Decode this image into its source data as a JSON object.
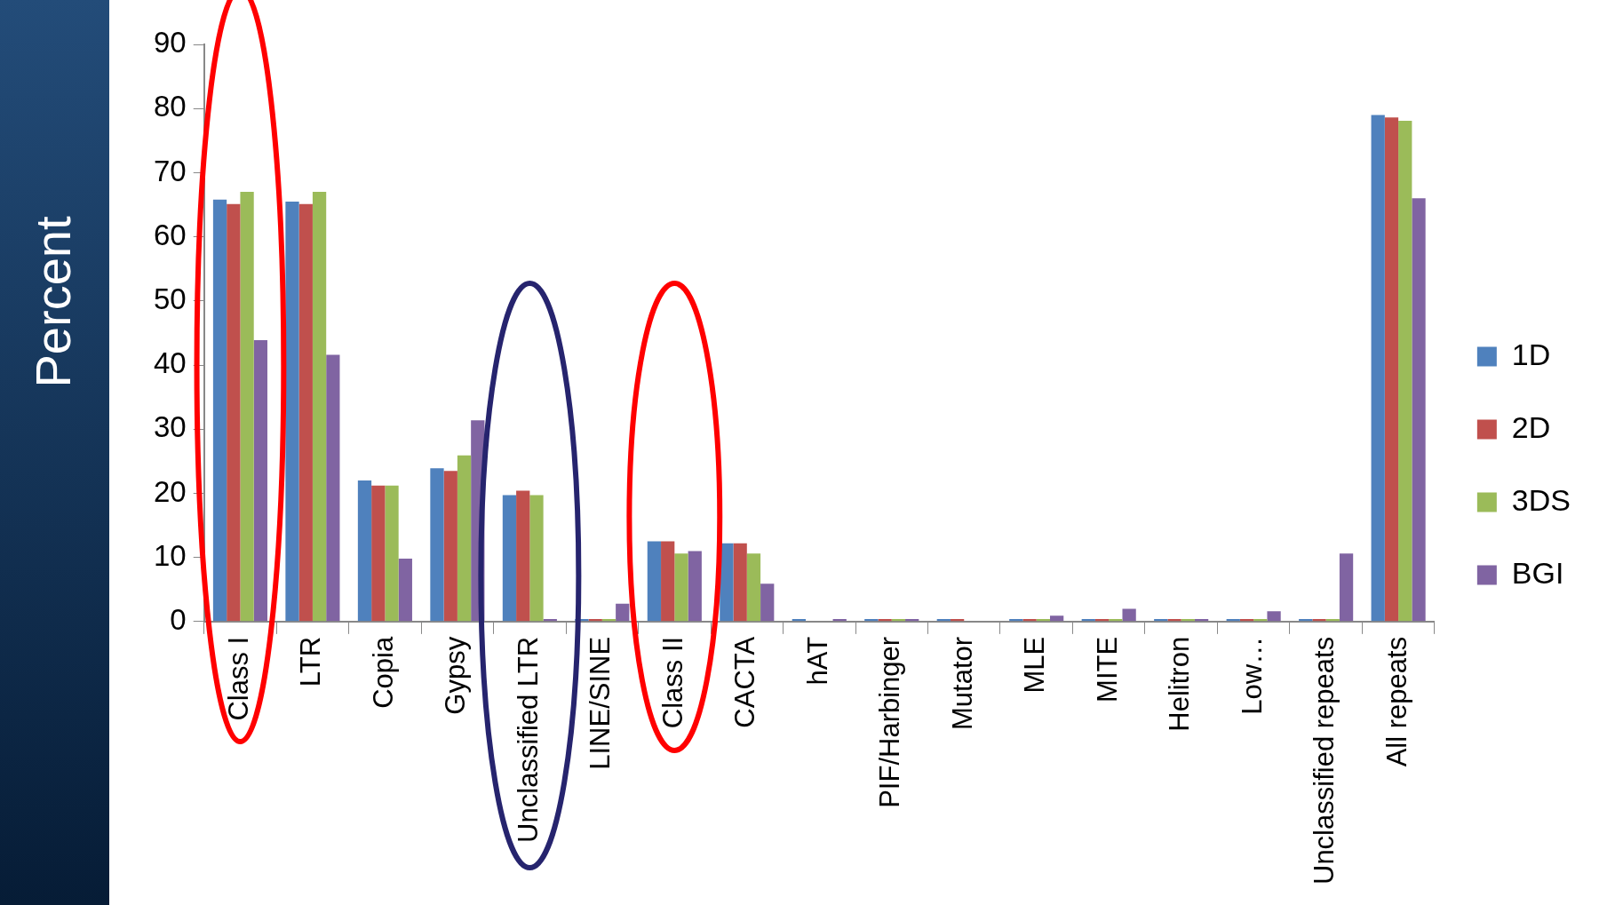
{
  "chart_data": {
    "type": "bar",
    "ylabel": "Percent",
    "categories": [
      "Class I",
      "LTR",
      "Copia",
      "Gypsy",
      "Unclassified LTR",
      "LINE/SINE",
      "Class II",
      "CACTA",
      "hAT",
      "PIF/Harbinger",
      "Mutator",
      "MLE",
      "MITE",
      "Helitron",
      "Low…",
      "Unclassified repeats",
      "All repeats"
    ],
    "series": [
      {
        "name": "1D",
        "color": "#4f81bd",
        "values": [
          65.8,
          65.5,
          22.0,
          23.9,
          19.7,
          0.4,
          12.5,
          12.2,
          0.4,
          0.4,
          0.4,
          0.4,
          0.4,
          0.4,
          0.4,
          0.4,
          79.0
        ]
      },
      {
        "name": "2D",
        "color": "#c0504d",
        "values": [
          65.1,
          65.1,
          21.2,
          23.5,
          20.4,
          0.4,
          12.5,
          12.2,
          0,
          0.4,
          0.4,
          0.4,
          0.4,
          0.4,
          0.4,
          0.4,
          78.6
        ]
      },
      {
        "name": "3DS",
        "color": "#9bbb59",
        "values": [
          67.0,
          67.0,
          21.2,
          25.9,
          19.7,
          0.4,
          10.6,
          10.6,
          0,
          0.4,
          0,
          0.4,
          0.4,
          0.4,
          0.4,
          0.4,
          78.1
        ]
      },
      {
        "name": "BGI",
        "color": "#8064a2",
        "values": [
          43.9,
          41.6,
          9.8,
          31.4,
          0.4,
          2.8,
          11.0,
          5.9,
          0.4,
          0.4,
          0,
          0.9,
          2.0,
          0.4,
          1.6,
          10.6,
          66.0
        ]
      }
    ],
    "ylim": [
      0,
      90
    ],
    "yticks": [
      0,
      10,
      20,
      30,
      40,
      50,
      60,
      70,
      80,
      90
    ],
    "grid": false,
    "legend": "right"
  }
}
